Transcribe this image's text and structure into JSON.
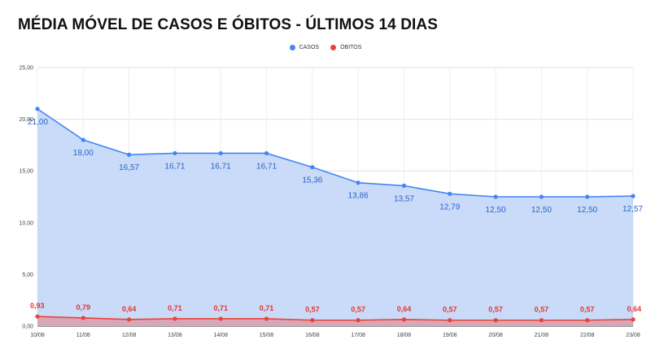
{
  "title": "MÉDIA MÓVEL DE CASOS E ÓBITOS - ÚLTIMOS 14 DIAS",
  "chart_data": {
    "type": "area",
    "title": "MÉDIA MÓVEL DE CASOS E ÓBITOS - ÚLTIMOS 14 DIAS",
    "categories": [
      "10/08",
      "11/08",
      "12/08",
      "13/08",
      "14/08",
      "15/08",
      "16/08",
      "17/08",
      "18/08",
      "19/08",
      "20/08",
      "21/08",
      "22/08",
      "23/08"
    ],
    "ylim": [
      0,
      25
    ],
    "yticks": [
      "0,00",
      "5,00",
      "10,00",
      "15,00",
      "20,00",
      "25,00"
    ],
    "ytick_values": [
      0,
      5,
      10,
      15,
      20,
      25
    ],
    "grid": true,
    "legend_position": "top-center",
    "series": [
      {
        "name": "CASOS",
        "color": "#4285f4",
        "fill": "#c6d9f8",
        "values": [
          21.0,
          18.0,
          16.57,
          16.71,
          16.71,
          16.71,
          15.36,
          13.86,
          13.57,
          12.79,
          12.5,
          12.5,
          12.5,
          12.57
        ],
        "labels": [
          "21,00",
          "18,00",
          "16,57",
          "16,71",
          "16,71",
          "16,71",
          "15,36",
          "13,86",
          "13,57",
          "12,79",
          "12,50",
          "12,50",
          "12,50",
          "12,57"
        ]
      },
      {
        "name": "ÓBITOS",
        "color": "#ea4335",
        "fill": "#d9a3b5",
        "values": [
          0.93,
          0.79,
          0.64,
          0.71,
          0.71,
          0.71,
          0.57,
          0.57,
          0.64,
          0.57,
          0.57,
          0.57,
          0.57,
          0.64
        ],
        "labels": [
          "0,93",
          "0,79",
          "0,64",
          "0,71",
          "0,71",
          "0,71",
          "0,57",
          "0,57",
          "0,64",
          "0,57",
          "0,57",
          "0,57",
          "0,57",
          "0,64"
        ]
      }
    ]
  }
}
